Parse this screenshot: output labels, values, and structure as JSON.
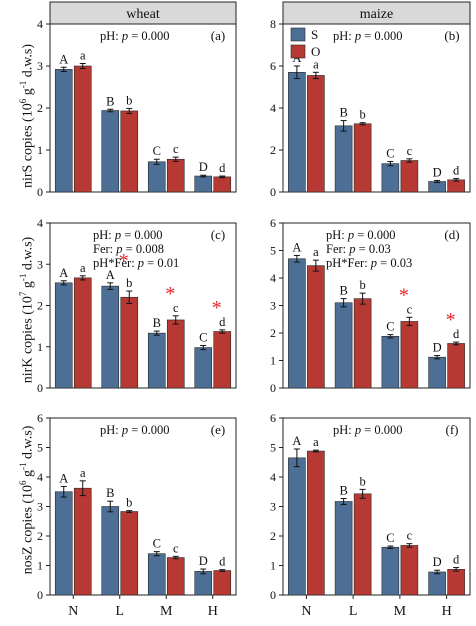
{
  "colors": {
    "S": "#4e6f95",
    "O": "#b63a33",
    "sig": "#e8262a",
    "strip": "#d9d9d9"
  },
  "columns": [
    "wheat",
    "maize"
  ],
  "legend": [
    {
      "key": "S",
      "label": "S"
    },
    {
      "key": "O",
      "label": "O"
    }
  ],
  "xticks": [
    "N",
    "L",
    "M",
    "H"
  ],
  "ylabels": [
    {
      "pre": "nirS copies (10",
      "exp": "6",
      "mid": " g",
      "exp2": "-1",
      "post": " d.w.s)"
    },
    {
      "pre": "nirK copies (10",
      "exp": "7",
      "mid": " g",
      "exp2": "-1",
      "post": " d.w.s)"
    },
    {
      "pre": "nosZ copies (10",
      "exp": "6",
      "mid": " g",
      "exp2": "-1",
      "post": " d.w.s)"
    }
  ],
  "chart_data": [
    {
      "type": "bar",
      "panel": "(a)",
      "crop": "wheat",
      "gene": "nirS",
      "categories": [
        "N",
        "L",
        "M",
        "H"
      ],
      "ylim": [
        0,
        4
      ],
      "yticks": [
        0,
        1,
        2,
        3,
        4
      ],
      "stats": [
        "pH: p = 0.000"
      ],
      "series": [
        {
          "name": "S",
          "values": [
            2.92,
            1.94,
            0.72,
            0.38
          ],
          "err": [
            0.05,
            0.03,
            0.06,
            0.02
          ],
          "letters": [
            "A",
            "B",
            "C",
            "D"
          ]
        },
        {
          "name": "O",
          "values": [
            3.0,
            1.93,
            0.78,
            0.36
          ],
          "err": [
            0.06,
            0.06,
            0.05,
            0.02
          ],
          "letters": [
            "a",
            "b",
            "c",
            "d"
          ]
        }
      ],
      "sig": []
    },
    {
      "type": "bar",
      "panel": "(b)",
      "crop": "maize",
      "gene": "nirS",
      "categories": [
        "N",
        "L",
        "M",
        "H"
      ],
      "ylim": [
        0,
        8
      ],
      "yticks": [
        0,
        2,
        4,
        6,
        8
      ],
      "stats": [
        "pH: p = 0.000"
      ],
      "legend": true,
      "series": [
        {
          "name": "S",
          "values": [
            5.7,
            3.15,
            1.35,
            0.5
          ],
          "err": [
            0.3,
            0.25,
            0.1,
            0.05
          ],
          "letters": [
            "A",
            "B",
            "C",
            "D"
          ]
        },
        {
          "name": "O",
          "values": [
            5.55,
            3.25,
            1.5,
            0.58
          ],
          "err": [
            0.15,
            0.05,
            0.08,
            0.06
          ],
          "letters": [
            "a",
            "b",
            "c",
            "d"
          ]
        }
      ],
      "sig": []
    },
    {
      "type": "bar",
      "panel": "(c)",
      "crop": "wheat",
      "gene": "nirK",
      "categories": [
        "N",
        "L",
        "M",
        "H"
      ],
      "ylim": [
        0,
        4
      ],
      "yticks": [
        0,
        1,
        2,
        3,
        4
      ],
      "stats": [
        "pH: p = 0.000",
        "Fer: p = 0.008",
        "pH*Fer: p = 0.01"
      ],
      "series": [
        {
          "name": "S",
          "values": [
            2.55,
            2.47,
            1.33,
            0.98
          ],
          "err": [
            0.05,
            0.08,
            0.05,
            0.05
          ],
          "letters": [
            "A",
            "A",
            "B",
            "C"
          ]
        },
        {
          "name": "O",
          "values": [
            2.67,
            2.2,
            1.65,
            1.37
          ],
          "err": [
            0.05,
            0.15,
            0.1,
            0.04
          ],
          "letters": [
            "a",
            "b",
            "c",
            "d"
          ]
        }
      ],
      "sig": [
        1,
        2,
        3
      ]
    },
    {
      "type": "bar",
      "panel": "(d)",
      "crop": "maize",
      "gene": "nirK",
      "categories": [
        "N",
        "L",
        "M",
        "H"
      ],
      "ylim": [
        0,
        6
      ],
      "yticks": [
        0,
        1,
        2,
        3,
        4,
        5,
        6
      ],
      "stats": [
        "pH: p = 0.000",
        "Fer: p = 0.03",
        "pH*Fer: p = 0.03"
      ],
      "series": [
        {
          "name": "S",
          "values": [
            4.7,
            3.1,
            1.88,
            1.12
          ],
          "err": [
            0.12,
            0.15,
            0.06,
            0.06
          ],
          "letters": [
            "A",
            "B",
            "C",
            "D"
          ]
        },
        {
          "name": "O",
          "values": [
            4.45,
            3.25,
            2.42,
            1.62
          ],
          "err": [
            0.2,
            0.2,
            0.15,
            0.05
          ],
          "letters": [
            "a",
            "b",
            "c",
            "d"
          ]
        }
      ],
      "sig": [
        2,
        3
      ]
    },
    {
      "type": "bar",
      "panel": "(e)",
      "crop": "wheat",
      "gene": "nosZ",
      "categories": [
        "N",
        "L",
        "M",
        "H"
      ],
      "ylim": [
        0,
        6
      ],
      "yticks": [
        0,
        1,
        2,
        3,
        4,
        5,
        6
      ],
      "stats": [
        "pH: p = 0.000"
      ],
      "series": [
        {
          "name": "S",
          "values": [
            3.5,
            3.0,
            1.4,
            0.8
          ],
          "err": [
            0.18,
            0.18,
            0.07,
            0.08
          ],
          "letters": [
            "A",
            "B",
            "C",
            "D"
          ]
        },
        {
          "name": "O",
          "values": [
            3.62,
            2.83,
            1.27,
            0.83
          ],
          "err": [
            0.25,
            0.03,
            0.04,
            0.03
          ],
          "letters": [
            "a",
            "b",
            "c",
            "d"
          ]
        }
      ],
      "sig": []
    },
    {
      "type": "bar",
      "panel": "(f)",
      "crop": "maize",
      "gene": "nosZ",
      "categories": [
        "N",
        "L",
        "M",
        "H"
      ],
      "ylim": [
        0,
        6
      ],
      "yticks": [
        0,
        1,
        2,
        3,
        4,
        5,
        6
      ],
      "stats": [
        "pH: p = 0.000"
      ],
      "series": [
        {
          "name": "S",
          "values": [
            4.65,
            3.17,
            1.62,
            0.78
          ],
          "err": [
            0.3,
            0.1,
            0.04,
            0.06
          ],
          "letters": [
            "A",
            "B",
            "C",
            "D"
          ]
        },
        {
          "name": "O",
          "values": [
            4.88,
            3.43,
            1.68,
            0.87
          ],
          "err": [
            0.03,
            0.15,
            0.06,
            0.06
          ],
          "letters": [
            "a",
            "b",
            "c",
            "d"
          ]
        }
      ],
      "sig": []
    }
  ]
}
